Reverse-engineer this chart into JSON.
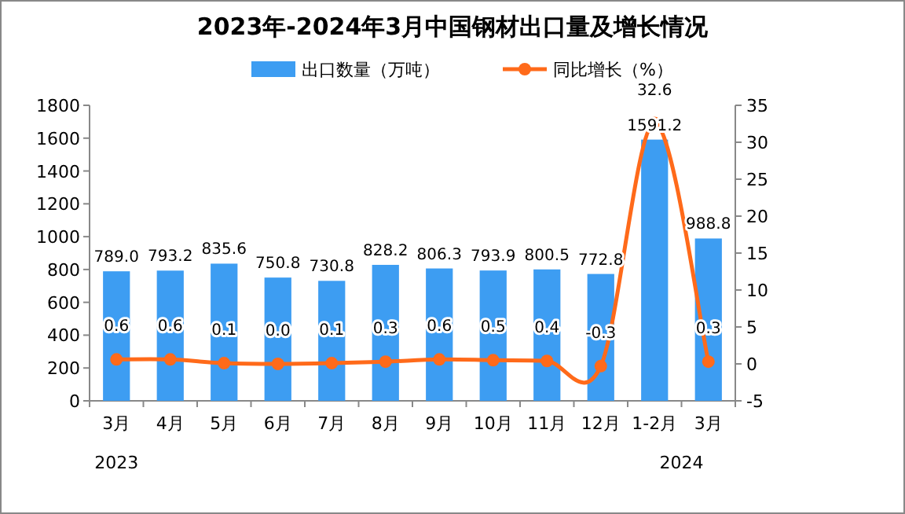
{
  "chart_data": {
    "type": "bar",
    "title": "2023年-2024年3月中国钢材出口量及增长情况",
    "categories": [
      "3月",
      "4月",
      "5月",
      "6月",
      "7月",
      "8月",
      "9月",
      "10月",
      "11月",
      "12月",
      "1-2月",
      "3月"
    ],
    "series": [
      {
        "name": "出口数量（万吨）",
        "color": "#3d9df2",
        "values": [
          789,
          793.2,
          835.6,
          750.8,
          730.8,
          828.2,
          806.3,
          793.9,
          800.5,
          772.8,
          1591.2,
          988.8
        ],
        "value_labels": [
          "789.0",
          "793.2",
          "835.6",
          "750.8",
          "730.8",
          "828.2",
          "806.3",
          "793.9",
          "800.5",
          "772.8",
          "1591.2",
          "988.8"
        ]
      },
      {
        "name": "同比增长（%）",
        "type": "line",
        "axis": "y2",
        "color": "#ff6a1a",
        "marker": "circle",
        "values": [
          0.6,
          0.6,
          0.1,
          0,
          0.1,
          0.3,
          0.6,
          0.5,
          0.4,
          -0.3,
          32.6,
          0.3
        ],
        "value_labels": [
          "0.6",
          "0.6",
          "0.1",
          "0.0",
          "0.1",
          "0.3",
          "0.6",
          "0.5",
          "0.4",
          "-0.3",
          "32.6",
          "0.3"
        ]
      }
    ],
    "ylim": [
      0,
      1800
    ],
    "yticks": [
      0,
      200,
      400,
      600,
      800,
      1000,
      1200,
      1400,
      1600,
      1800
    ],
    "y2lim": [
      -5,
      35
    ],
    "y2ticks": [
      -5,
      0,
      5,
      10,
      15,
      20,
      25,
      30,
      35
    ],
    "legend": "top",
    "grid": false,
    "annotations": [
      "2023",
      "2024"
    ]
  }
}
